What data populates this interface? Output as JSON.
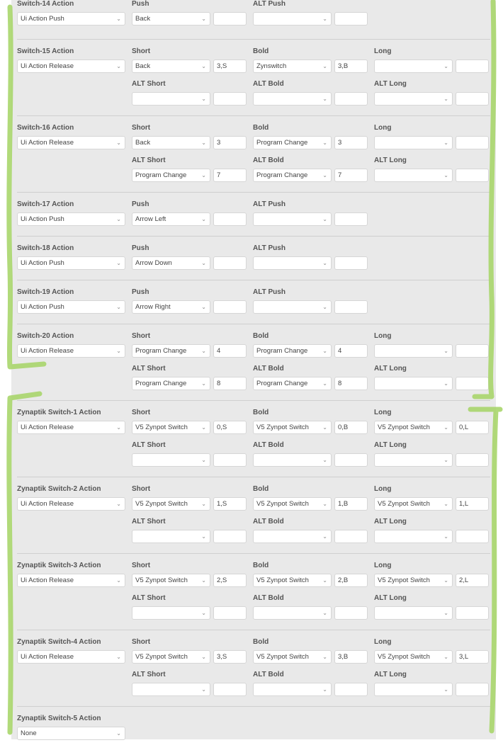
{
  "sections": [
    {
      "title": "Switch-14 Action",
      "action": "Ui Action Push",
      "rows": [
        [
          {
            "label": "Push",
            "select": "Back",
            "value": ""
          },
          {
            "label": "ALT Push",
            "select": "",
            "value": ""
          }
        ]
      ]
    },
    {
      "title": "Switch-15 Action",
      "action": "Ui Action Release",
      "rows": [
        [
          {
            "label": "Short",
            "select": "Back",
            "value": "3,S"
          },
          {
            "label": "Bold",
            "select": "Zynswitch",
            "value": "3,B"
          },
          {
            "label": "Long",
            "select": "",
            "value": ""
          }
        ],
        [
          {
            "label": "ALT Short",
            "select": "",
            "value": ""
          },
          {
            "label": "ALT Bold",
            "select": "",
            "value": ""
          },
          {
            "label": "ALT Long",
            "select": "",
            "value": ""
          }
        ]
      ]
    },
    {
      "title": "Switch-16 Action",
      "action": "Ui Action Release",
      "rows": [
        [
          {
            "label": "Short",
            "select": "Back",
            "value": "3"
          },
          {
            "label": "Bold",
            "select": "Program Change",
            "value": "3"
          },
          {
            "label": "Long",
            "select": "",
            "value": ""
          }
        ],
        [
          {
            "label": "ALT Short",
            "select": "Program Change",
            "value": "7"
          },
          {
            "label": "ALT Bold",
            "select": "Program Change",
            "value": "7"
          },
          {
            "label": "ALT Long",
            "select": "",
            "value": ""
          }
        ]
      ]
    },
    {
      "title": "Switch-17 Action",
      "action": "Ui Action Push",
      "rows": [
        [
          {
            "label": "Push",
            "select": "Arrow Left",
            "value": ""
          },
          {
            "label": "ALT Push",
            "select": "",
            "value": ""
          }
        ]
      ]
    },
    {
      "title": "Switch-18 Action",
      "action": "Ui Action Push",
      "rows": [
        [
          {
            "label": "Push",
            "select": "Arrow Down",
            "value": ""
          },
          {
            "label": "ALT Push",
            "select": "",
            "value": ""
          }
        ]
      ]
    },
    {
      "title": "Switch-19 Action",
      "action": "Ui Action Push",
      "rows": [
        [
          {
            "label": "Push",
            "select": "Arrow Right",
            "value": ""
          },
          {
            "label": "ALT Push",
            "select": "",
            "value": ""
          }
        ]
      ]
    },
    {
      "title": "Switch-20 Action",
      "action": "Ui Action Release",
      "rows": [
        [
          {
            "label": "Short",
            "select": "Program Change",
            "value": "4"
          },
          {
            "label": "Bold",
            "select": "Program Change",
            "value": "4"
          },
          {
            "label": "Long",
            "select": "",
            "value": ""
          }
        ],
        [
          {
            "label": "ALT Short",
            "select": "Program Change",
            "value": "8"
          },
          {
            "label": "ALT Bold",
            "select": "Program Change",
            "value": "8"
          },
          {
            "label": "ALT Long",
            "select": "",
            "value": ""
          }
        ]
      ]
    },
    {
      "title": "Zynaptik Switch-1 Action",
      "action": "Ui Action Release",
      "rows": [
        [
          {
            "label": "Short",
            "select": "V5 Zynpot Switch",
            "value": "0,S"
          },
          {
            "label": "Bold",
            "select": "V5 Zynpot Switch",
            "value": "0,B"
          },
          {
            "label": "Long",
            "select": "V5 Zynpot Switch",
            "value": "0,L"
          }
        ],
        [
          {
            "label": "ALT Short",
            "select": "",
            "value": ""
          },
          {
            "label": "ALT Bold",
            "select": "",
            "value": ""
          },
          {
            "label": "ALT Long",
            "select": "",
            "value": ""
          }
        ]
      ]
    },
    {
      "title": "Zynaptik Switch-2 Action",
      "action": "Ui Action Release",
      "rows": [
        [
          {
            "label": "Short",
            "select": "V5 Zynpot Switch",
            "value": "1,S"
          },
          {
            "label": "Bold",
            "select": "V5 Zynpot Switch",
            "value": "1,B"
          },
          {
            "label": "Long",
            "select": "V5 Zynpot Switch",
            "value": "1,L"
          }
        ],
        [
          {
            "label": "ALT Short",
            "select": "",
            "value": ""
          },
          {
            "label": "ALT Bold",
            "select": "",
            "value": ""
          },
          {
            "label": "ALT Long",
            "select": "",
            "value": ""
          }
        ]
      ]
    },
    {
      "title": "Zynaptik Switch-3 Action",
      "action": "Ui Action Release",
      "rows": [
        [
          {
            "label": "Short",
            "select": "V5 Zynpot Switch",
            "value": "2,S"
          },
          {
            "label": "Bold",
            "select": "V5 Zynpot Switch",
            "value": "2,B"
          },
          {
            "label": "Long",
            "select": "V5 Zynpot Switch",
            "value": "2,L"
          }
        ],
        [
          {
            "label": "ALT Short",
            "select": "",
            "value": ""
          },
          {
            "label": "ALT Bold",
            "select": "",
            "value": ""
          },
          {
            "label": "ALT Long",
            "select": "",
            "value": ""
          }
        ]
      ]
    },
    {
      "title": "Zynaptik Switch-4 Action",
      "action": "Ui Action Release",
      "rows": [
        [
          {
            "label": "Short",
            "select": "V5 Zynpot Switch",
            "value": "3,S"
          },
          {
            "label": "Bold",
            "select": "V5 Zynpot Switch",
            "value": "3,B"
          },
          {
            "label": "Long",
            "select": "V5 Zynpot Switch",
            "value": "3,L"
          }
        ],
        [
          {
            "label": "ALT Short",
            "select": "",
            "value": ""
          },
          {
            "label": "ALT Bold",
            "select": "",
            "value": ""
          },
          {
            "label": "ALT Long",
            "select": "",
            "value": ""
          }
        ]
      ]
    },
    {
      "title": "Zynaptik Switch-5 Action",
      "action": "None",
      "rows": [
        []
      ]
    }
  ],
  "chevron_icon": "chevron-down-icon",
  "annotation_color": "#a9d66c"
}
